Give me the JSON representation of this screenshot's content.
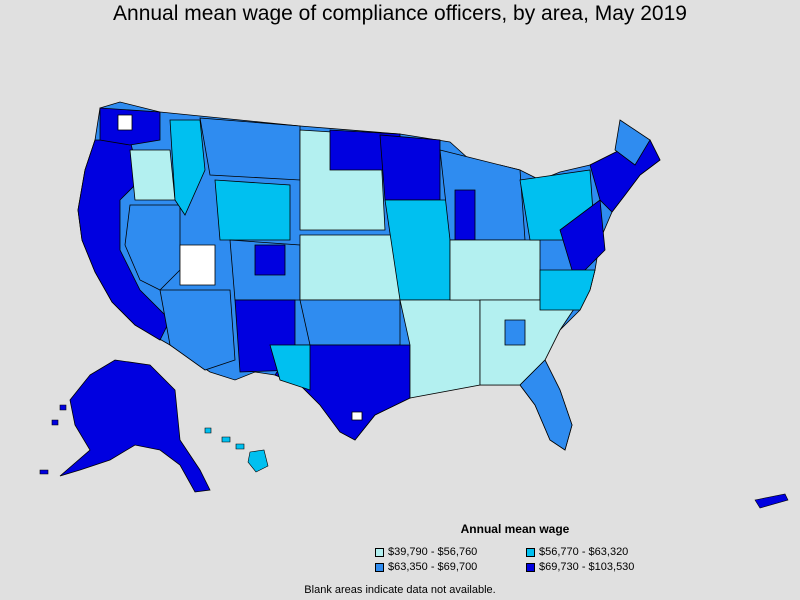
{
  "title": "Annual mean wage of compliance officers, by area, May 2019",
  "legend": {
    "title": "Annual mean wage",
    "items": [
      {
        "label": "$39,790 - $56,760",
        "color": "#b3f0f0"
      },
      {
        "label": "$56,770 - $63,320",
        "color": "#00c0f0"
      },
      {
        "label": "$63,350 - $69,700",
        "color": "#2f8cf0"
      },
      {
        "label": "$69,730 - $103,530",
        "color": "#0000e0"
      }
    ]
  },
  "footnote": "Blank areas indicate data not available."
}
